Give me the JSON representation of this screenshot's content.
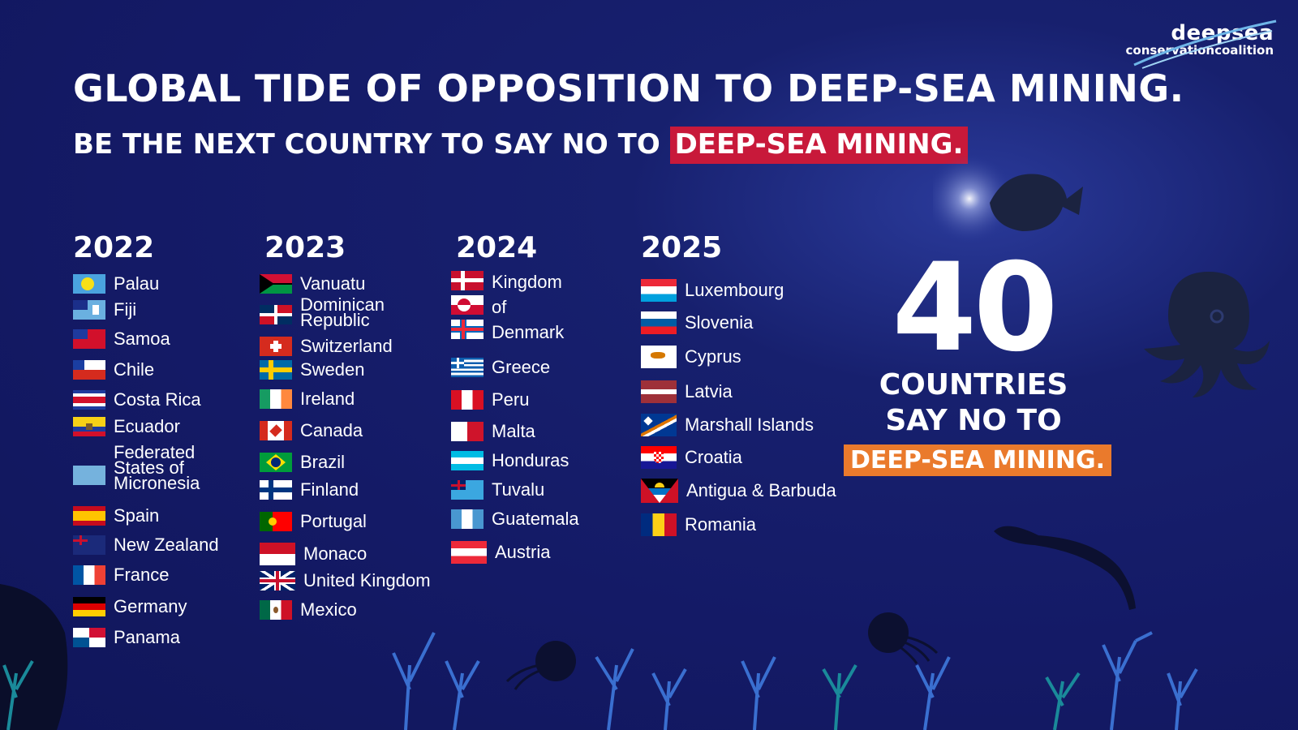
{
  "logo": {
    "line1": "deepsea",
    "line2": "conservationcoalition"
  },
  "title": "GLOBAL TIDE OF OPPOSITION TO DEEP-SEA MINING.",
  "subtitle": {
    "prefix": "BE THE NEXT COUNTRY TO SAY NO TO ",
    "highlight": "DEEP-SEA MINING."
  },
  "years": [
    {
      "year": "2022",
      "countries": [
        "Palau",
        "Fiji",
        "Samoa",
        "Chile",
        "Costa Rica",
        "Ecuador",
        "Federated States of Micronesia",
        "Spain",
        "New Zealand",
        "France",
        "Germany",
        "Panama"
      ]
    },
    {
      "year": "2023",
      "countries": [
        "Vanuatu",
        "Dominican Republic",
        "Switzerland",
        "Sweden",
        "Ireland",
        "Canada",
        "Brazil",
        "Finland",
        "Portugal",
        "Monaco",
        "United Kingdom",
        "Mexico"
      ]
    },
    {
      "year": "2024",
      "countries": [
        "Kingdom of Denmark",
        "Greece",
        "Peru",
        "Malta",
        "Honduras",
        "Tuvalu",
        "Guatemala",
        "Austria"
      ]
    },
    {
      "year": "2025",
      "countries": [
        "Luxembourg",
        "Slovenia",
        "Cyprus",
        "Latvia",
        "Marshall Islands",
        "Croatia",
        "Antigua & Barbuda",
        "Romania"
      ]
    }
  ],
  "summary": {
    "count": "40",
    "line1": "COUNTRIES",
    "line2": "SAY NO TO",
    "highlight": "DEEP-SEA MINING."
  },
  "colors": {
    "background": "#141a66",
    "subtitle_highlight": "#c8193a",
    "summary_highlight": "#ea7a2c"
  }
}
